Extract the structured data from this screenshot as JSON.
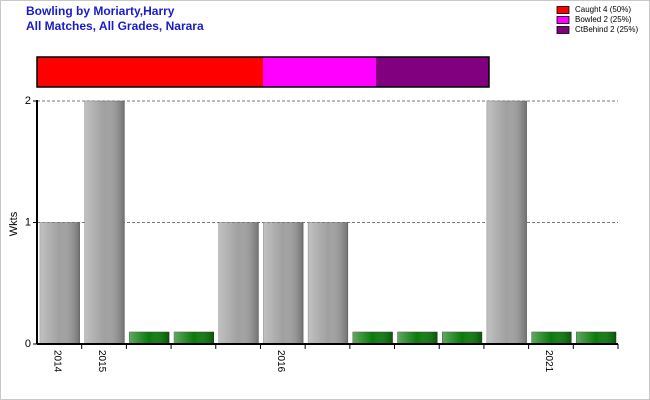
{
  "chart_data": [
    {
      "type": "stacked-share",
      "title": "Bowling by Moriarty,Harry",
      "subtitle": "All Matches, All Grades, Narara",
      "series": [
        {
          "name": "Caught 4 (50%)",
          "color": "#ff0000",
          "values": [
            4
          ]
        },
        {
          "name": "Bowled 2 (25%)",
          "color": "#ff00ff",
          "values": [
            2
          ]
        },
        {
          "name": "CtBehind 2 (25%)",
          "color": "#800080",
          "values": [
            2
          ]
        }
      ],
      "legend": "top-right"
    },
    {
      "type": "bar",
      "ylabel": "Wkts",
      "categories": [
        "2014",
        "2015",
        null,
        null,
        null,
        "2016",
        null,
        null,
        null,
        null,
        null,
        "2021",
        null
      ],
      "values": [
        1,
        2,
        0,
        0,
        1,
        1,
        1,
        0,
        0,
        0,
        2,
        0,
        0
      ],
      "color": "#a0a0a0",
      "zero_color": "#0a7a0a",
      "ylim": [
        0,
        2
      ],
      "yticks": [
        0,
        1,
        2
      ],
      "grid": true
    }
  ]
}
